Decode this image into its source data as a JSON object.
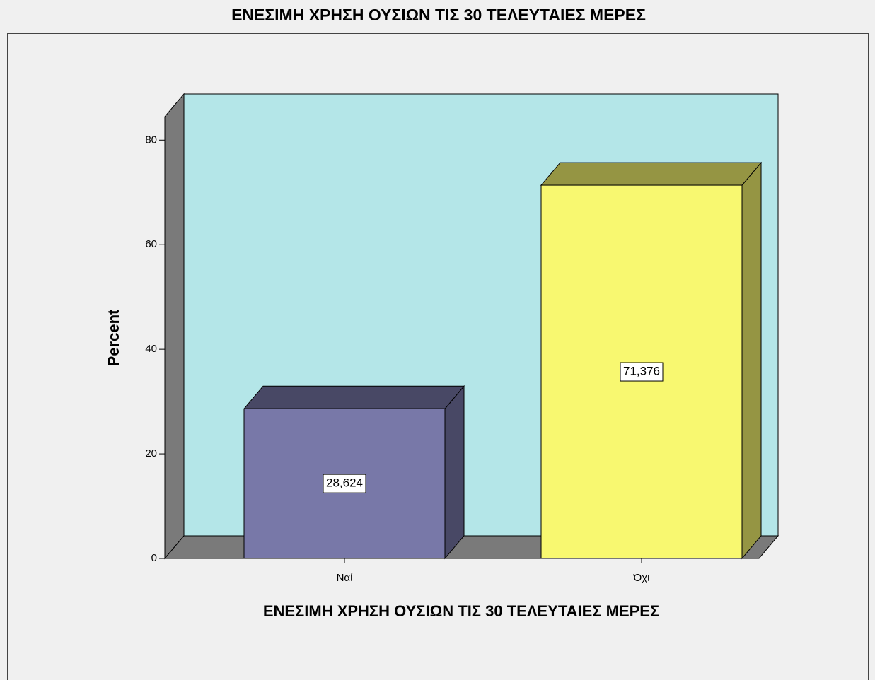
{
  "chart_data": {
    "type": "bar",
    "title": "ΕΝΕΣΙΜΗ ΧΡΗΣΗ ΟΥΣΙΩΝ ΤΙΣ 30 ΤΕΛΕΥΤΑΙΕΣ ΜΕΡΕΣ",
    "x_label": "ΕΝΕΣΙΜΗ ΧΡΗΣΗ ΟΥΣΙΩΝ ΤΙΣ 30 ΤΕΛΕΥΤΑΙΕΣ ΜΕΡΕΣ",
    "y_label": "Percent",
    "categories": [
      "Ναί",
      "Όχι"
    ],
    "values": [
      28.624,
      71.376
    ],
    "value_labels": [
      "28,624",
      "71,376"
    ],
    "colors": [
      "#7878a8",
      "#f8f870"
    ],
    "ylim": [
      0,
      84.5
    ],
    "yticks": [
      0,
      20,
      40,
      60,
      80
    ]
  }
}
